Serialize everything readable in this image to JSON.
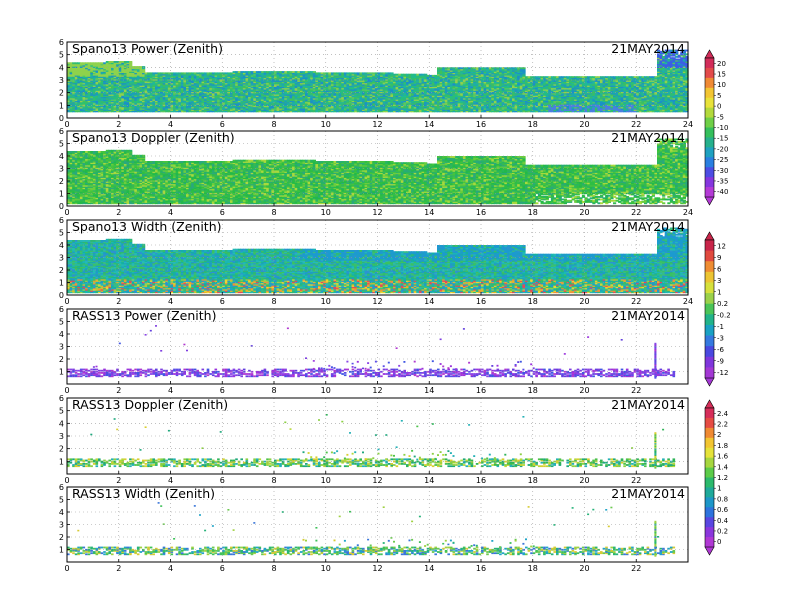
{
  "date_label": "21MAY2014",
  "chart_data": [
    {
      "type": "heatmap",
      "title": "Spano13 Power (Zenith)",
      "date": "21MAY2014",
      "xlim": [
        0,
        24
      ],
      "ylim": [
        0,
        6
      ],
      "x_ticks": [
        "0",
        "2",
        "4",
        "6",
        "8",
        "10",
        "12",
        "14",
        "16",
        "18",
        "20",
        "22",
        "24"
      ],
      "y_ticks": [
        "0",
        "1",
        "2",
        "3",
        "4",
        "5",
        "6"
      ],
      "grid": true,
      "colorbar": {
        "ticks": [
          "20",
          "15",
          "10",
          "5",
          "0",
          "-5",
          "-10",
          "-15",
          "-20",
          "-25",
          "-30",
          "-35",
          "-40"
        ]
      },
      "data_top_km": [
        [
          0,
          4.4
        ],
        [
          1.5,
          4.5
        ],
        [
          2.5,
          4.1
        ],
        [
          3.0,
          3.6
        ],
        [
          5.0,
          3.6
        ],
        [
          6.3,
          3.7
        ],
        [
          9.5,
          3.6
        ],
        [
          12.5,
          3.5
        ],
        [
          13.8,
          3.4
        ],
        [
          14.2,
          4.0
        ],
        [
          16.7,
          4.0
        ],
        [
          17.6,
          3.3
        ],
        [
          22.4,
          3.3
        ],
        [
          22.8,
          5.3
        ],
        [
          24,
          5.3
        ]
      ]
    },
    {
      "type": "heatmap",
      "title": "Spano13 Doppler (Zenith)",
      "date": "21MAY2014",
      "xlim": [
        0,
        24
      ],
      "ylim": [
        0,
        6
      ],
      "x_ticks": [
        "0",
        "2",
        "4",
        "6",
        "8",
        "10",
        "12",
        "14",
        "16",
        "18",
        "20",
        "22",
        "24"
      ],
      "y_ticks": [
        "0",
        "1",
        "2",
        "3",
        "4",
        "5",
        "6"
      ],
      "grid": true,
      "data_top_km": [
        [
          0,
          4.4
        ],
        [
          1.5,
          4.5
        ],
        [
          2.5,
          4.1
        ],
        [
          3.0,
          3.6
        ],
        [
          5.0,
          3.6
        ],
        [
          6.3,
          3.7
        ],
        [
          9.5,
          3.6
        ],
        [
          12.5,
          3.5
        ],
        [
          13.8,
          3.4
        ],
        [
          14.2,
          4.0
        ],
        [
          16.7,
          4.0
        ],
        [
          17.6,
          3.3
        ],
        [
          22.4,
          3.3
        ],
        [
          22.8,
          5.3
        ],
        [
          24,
          5.3
        ]
      ]
    },
    {
      "type": "heatmap",
      "title": "Spano13 Width (Zenith)",
      "date": "21MAY2014",
      "xlim": [
        0,
        24
      ],
      "ylim": [
        0,
        6
      ],
      "x_ticks": [
        "0",
        "2",
        "4",
        "6",
        "8",
        "10",
        "12",
        "14",
        "16",
        "18",
        "20",
        "22",
        "24"
      ],
      "y_ticks": [
        "0",
        "1",
        "2",
        "3",
        "4",
        "5",
        "6"
      ],
      "grid": true,
      "colorbar": {
        "ticks": [
          "12",
          "9",
          "6",
          "3",
          "1",
          "0.2",
          "-0.2",
          "-1",
          "-3",
          "-6",
          "-9",
          "-12"
        ]
      },
      "data_top_km": [
        [
          0,
          4.4
        ],
        [
          1.5,
          4.5
        ],
        [
          2.5,
          4.1
        ],
        [
          3.0,
          3.6
        ],
        [
          5.0,
          3.6
        ],
        [
          6.3,
          3.7
        ],
        [
          9.5,
          3.6
        ],
        [
          12.5,
          3.5
        ],
        [
          13.8,
          3.4
        ],
        [
          14.2,
          4.0
        ],
        [
          16.7,
          4.0
        ],
        [
          17.6,
          3.3
        ],
        [
          22.4,
          3.3
        ],
        [
          22.8,
          5.3
        ],
        [
          24,
          5.3
        ]
      ]
    },
    {
      "type": "heatmap",
      "title": "RASS13 Power (Zenith)",
      "date": "21MAY2014",
      "xlim": [
        0,
        24
      ],
      "ylim": [
        0,
        6
      ],
      "x_ticks": [
        "0",
        "2",
        "4",
        "6",
        "8",
        "10",
        "12",
        "14",
        "16",
        "18",
        "20",
        "22"
      ],
      "y_ticks": [
        "1",
        "2",
        "3",
        "4",
        "5",
        "6"
      ],
      "grid": true,
      "band_km": [
        0.6,
        1.2
      ]
    },
    {
      "type": "heatmap",
      "title": "RASS13 Doppler (Zenith)",
      "date": "21MAY2014",
      "xlim": [
        0,
        24
      ],
      "ylim": [
        0,
        6
      ],
      "x_ticks": [
        "0",
        "2",
        "4",
        "6",
        "8",
        "10",
        "12",
        "14",
        "16",
        "18",
        "20",
        "22"
      ],
      "y_ticks": [
        "1",
        "2",
        "3",
        "4",
        "5",
        "6"
      ],
      "grid": true,
      "colorbar": {
        "ticks": [
          "2.4",
          "2.2",
          "2",
          "1.8",
          "1.6",
          "1.4",
          "1.2",
          "1",
          "0.8",
          "0.6",
          "0.4",
          "0.2",
          "0"
        ]
      },
      "band_km": [
        0.6,
        1.2
      ]
    },
    {
      "type": "heatmap",
      "title": "RASS13 Width (Zenith)",
      "date": "21MAY2014",
      "xlim": [
        0,
        24
      ],
      "ylim": [
        0,
        6
      ],
      "x_ticks": [
        "0",
        "2",
        "4",
        "6",
        "8",
        "10",
        "12",
        "14",
        "16",
        "18",
        "20",
        "22"
      ],
      "y_ticks": [
        "1",
        "2",
        "3",
        "4",
        "5",
        "6"
      ],
      "grid": true,
      "band_km": [
        0.6,
        1.2
      ]
    }
  ]
}
